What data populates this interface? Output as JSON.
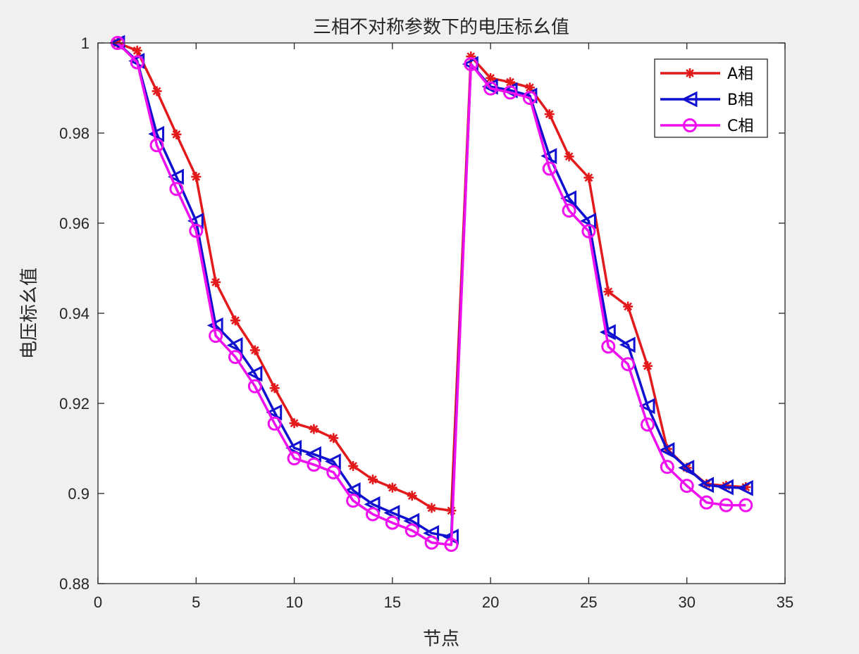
{
  "chart_data": {
    "type": "line",
    "title": "三相不对称参数下的电压标幺值",
    "xlabel": "节点",
    "ylabel": "电压标幺值",
    "xlim": [
      0,
      35
    ],
    "ylim": [
      0.88,
      1.0
    ],
    "xticks": [
      0,
      5,
      10,
      15,
      20,
      25,
      30,
      35
    ],
    "yticks": [
      0.88,
      0.9,
      0.92,
      0.94,
      0.96,
      0.98,
      1
    ],
    "xtick_labels": [
      "0",
      "5",
      "10",
      "15",
      "20",
      "25",
      "30",
      "35"
    ],
    "ytick_labels": [
      "0.88",
      "0.9",
      "0.92",
      "0.94",
      "0.96",
      "0.98",
      "1"
    ],
    "grid": false,
    "legend_position": "top-right",
    "x": [
      1,
      2,
      3,
      4,
      5,
      6,
      7,
      8,
      9,
      10,
      11,
      12,
      13,
      14,
      15,
      16,
      17,
      18,
      19,
      20,
      21,
      22,
      23,
      24,
      25,
      26,
      27,
      28,
      29,
      30,
      31,
      32,
      33
    ],
    "series": [
      {
        "name": "A相",
        "color": "#e31a1c",
        "marker": "asterisk",
        "values": [
          1.0,
          0.9983,
          0.9893,
          0.9797,
          0.9703,
          0.9469,
          0.9384,
          0.9318,
          0.9234,
          0.9156,
          0.9143,
          0.9123,
          0.9061,
          0.9031,
          0.9013,
          0.8995,
          0.8968,
          0.8962,
          0.997,
          0.9922,
          0.9913,
          0.9901,
          0.9842,
          0.9748,
          0.9701,
          0.9448,
          0.9415,
          0.9283,
          0.9099,
          0.9057,
          0.9021,
          0.9017,
          0.9014
        ]
      },
      {
        "name": "B相",
        "color": "#1010d0",
        "marker": "triangle-left",
        "values": [
          1.0,
          0.996,
          0.9798,
          0.9703,
          0.9605,
          0.9373,
          0.9329,
          0.9266,
          0.918,
          0.9101,
          0.9087,
          0.9071,
          0.9007,
          0.8976,
          0.8957,
          0.8939,
          0.8912,
          0.8904,
          0.9953,
          0.9903,
          0.9895,
          0.9883,
          0.9749,
          0.9655,
          0.9605,
          0.9358,
          0.933,
          0.9194,
          0.9096,
          0.9057,
          0.9019,
          0.9014,
          0.9012
        ]
      },
      {
        "name": "C相",
        "color": "#ee10ee",
        "marker": "circle",
        "values": [
          1.0,
          0.9957,
          0.9773,
          0.9676,
          0.9583,
          0.935,
          0.9303,
          0.9238,
          0.9155,
          0.9078,
          0.9064,
          0.9047,
          0.8984,
          0.8954,
          0.8935,
          0.8918,
          0.8891,
          0.8886,
          0.9953,
          0.9899,
          0.989,
          0.9878,
          0.9721,
          0.9628,
          0.9582,
          0.9326,
          0.9287,
          0.9153,
          0.9059,
          0.9017,
          0.898,
          0.8974,
          0.8974
        ]
      }
    ]
  }
}
